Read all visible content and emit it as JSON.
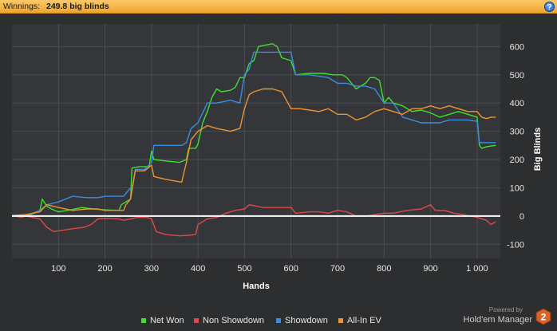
{
  "header": {
    "label": "Winnings:",
    "value": "249.8 big blinds",
    "help_symbol": "?"
  },
  "brand": {
    "powered_by": "Powered by",
    "name": "Hold'em Manager",
    "logo_text": "2"
  },
  "colors": {
    "background": "#2c2e30",
    "plot_background": "#34363a",
    "grid": "#4a4d52",
    "zero_line": "#ffffff",
    "net_won": "#3ee02c",
    "non_showdown": "#e04848",
    "showdown": "#3a8de0",
    "allin_ev": "#f0922e",
    "header": "#f7b548"
  },
  "chart_data": {
    "type": "line",
    "title": "",
    "xlabel": "Hands",
    "ylabel": "Big Blinds",
    "xlim": [
      0,
      1050
    ],
    "ylim": [
      -150,
      680
    ],
    "x_ticks": [
      100,
      200,
      300,
      400,
      500,
      600,
      700,
      800,
      900,
      1000
    ],
    "x_tick_labels": [
      "100",
      "200",
      "300",
      "400",
      "500",
      "600",
      "700",
      "800",
      "900",
      "1 000"
    ],
    "y_ticks": [
      -100,
      0,
      100,
      200,
      300,
      400,
      500,
      600
    ],
    "y_tick_labels": [
      "-100",
      "0",
      "100",
      "200",
      "300",
      "400",
      "500",
      "600"
    ],
    "grid": true,
    "legend_position": "bottom",
    "series": [
      {
        "name": "Net Won",
        "color": "#3ee02c",
        "points": [
          [
            0,
            2
          ],
          [
            20,
            -4
          ],
          [
            40,
            5
          ],
          [
            60,
            20
          ],
          [
            65,
            60
          ],
          [
            75,
            35
          ],
          [
            85,
            25
          ],
          [
            100,
            15
          ],
          [
            120,
            20
          ],
          [
            150,
            30
          ],
          [
            175,
            25
          ],
          [
            200,
            22
          ],
          [
            230,
            20
          ],
          [
            235,
            40
          ],
          [
            245,
            50
          ],
          [
            255,
            60
          ],
          [
            258,
            170
          ],
          [
            275,
            175
          ],
          [
            295,
            175
          ],
          [
            300,
            230
          ],
          [
            305,
            200
          ],
          [
            330,
            195
          ],
          [
            360,
            190
          ],
          [
            375,
            200
          ],
          [
            380,
            240
          ],
          [
            395,
            240
          ],
          [
            400,
            255
          ],
          [
            410,
            330
          ],
          [
            420,
            370
          ],
          [
            430,
            420
          ],
          [
            440,
            450
          ],
          [
            450,
            440
          ],
          [
            470,
            445
          ],
          [
            480,
            455
          ],
          [
            490,
            490
          ],
          [
            500,
            490
          ],
          [
            510,
            540
          ],
          [
            520,
            550
          ],
          [
            530,
            600
          ],
          [
            560,
            610
          ],
          [
            570,
            600
          ],
          [
            580,
            560
          ],
          [
            600,
            550
          ],
          [
            610,
            500
          ],
          [
            640,
            505
          ],
          [
            670,
            505
          ],
          [
            690,
            500
          ],
          [
            710,
            500
          ],
          [
            720,
            490
          ],
          [
            730,
            470
          ],
          [
            740,
            450
          ],
          [
            750,
            460
          ],
          [
            760,
            470
          ],
          [
            770,
            490
          ],
          [
            780,
            490
          ],
          [
            790,
            480
          ],
          [
            800,
            400
          ],
          [
            810,
            420
          ],
          [
            820,
            400
          ],
          [
            840,
            390
          ],
          [
            860,
            370
          ],
          [
            880,
            375
          ],
          [
            900,
            365
          ],
          [
            920,
            350
          ],
          [
            940,
            360
          ],
          [
            960,
            370
          ],
          [
            980,
            360
          ],
          [
            1000,
            350
          ],
          [
            1005,
            250
          ],
          [
            1010,
            240
          ],
          [
            1020,
            245
          ],
          [
            1030,
            248
          ],
          [
            1040,
            250
          ]
        ]
      },
      {
        "name": "Non Showdown",
        "color": "#e04848",
        "points": [
          [
            0,
            2
          ],
          [
            20,
            -4
          ],
          [
            30,
            0
          ],
          [
            60,
            -10
          ],
          [
            75,
            -40
          ],
          [
            90,
            -55
          ],
          [
            110,
            -50
          ],
          [
            130,
            -45
          ],
          [
            155,
            -40
          ],
          [
            170,
            -30
          ],
          [
            185,
            -10
          ],
          [
            200,
            -8
          ],
          [
            230,
            -10
          ],
          [
            240,
            -15
          ],
          [
            255,
            -10
          ],
          [
            270,
            -5
          ],
          [
            290,
            -5
          ],
          [
            300,
            -10
          ],
          [
            310,
            -55
          ],
          [
            330,
            -65
          ],
          [
            360,
            -70
          ],
          [
            380,
            -68
          ],
          [
            395,
            -65
          ],
          [
            400,
            -30
          ],
          [
            420,
            -10
          ],
          [
            440,
            -5
          ],
          [
            460,
            10
          ],
          [
            480,
            20
          ],
          [
            500,
            25
          ],
          [
            510,
            40
          ],
          [
            540,
            30
          ],
          [
            560,
            30
          ],
          [
            580,
            30
          ],
          [
            600,
            30
          ],
          [
            610,
            10
          ],
          [
            640,
            15
          ],
          [
            660,
            15
          ],
          [
            680,
            10
          ],
          [
            700,
            20
          ],
          [
            720,
            15
          ],
          [
            740,
            0
          ],
          [
            760,
            0
          ],
          [
            780,
            5
          ],
          [
            800,
            10
          ],
          [
            820,
            10
          ],
          [
            850,
            20
          ],
          [
            880,
            25
          ],
          [
            900,
            40
          ],
          [
            910,
            20
          ],
          [
            930,
            20
          ],
          [
            950,
            10
          ],
          [
            970,
            5
          ],
          [
            1000,
            -5
          ],
          [
            1010,
            -10
          ],
          [
            1020,
            -15
          ],
          [
            1030,
            -30
          ],
          [
            1040,
            -20
          ]
        ]
      },
      {
        "name": "Showdown",
        "color": "#3a8de0",
        "points": [
          [
            0,
            2
          ],
          [
            30,
            0
          ],
          [
            60,
            20
          ],
          [
            75,
            40
          ],
          [
            100,
            50
          ],
          [
            130,
            70
          ],
          [
            160,
            65
          ],
          [
            185,
            65
          ],
          [
            200,
            70
          ],
          [
            240,
            70
          ],
          [
            245,
            80
          ],
          [
            260,
            110
          ],
          [
            265,
            165
          ],
          [
            285,
            165
          ],
          [
            300,
            190
          ],
          [
            305,
            250
          ],
          [
            330,
            250
          ],
          [
            365,
            250
          ],
          [
            375,
            260
          ],
          [
            385,
            310
          ],
          [
            400,
            330
          ],
          [
            420,
            400
          ],
          [
            440,
            400
          ],
          [
            470,
            410
          ],
          [
            490,
            400
          ],
          [
            500,
            500
          ],
          [
            510,
            520
          ],
          [
            520,
            580
          ],
          [
            530,
            580
          ],
          [
            560,
            580
          ],
          [
            600,
            580
          ],
          [
            610,
            500
          ],
          [
            640,
            500
          ],
          [
            680,
            490
          ],
          [
            700,
            470
          ],
          [
            720,
            470
          ],
          [
            740,
            460
          ],
          [
            760,
            460
          ],
          [
            780,
            450
          ],
          [
            800,
            400
          ],
          [
            820,
            400
          ],
          [
            840,
            350
          ],
          [
            860,
            340
          ],
          [
            880,
            330
          ],
          [
            900,
            330
          ],
          [
            920,
            330
          ],
          [
            940,
            340
          ],
          [
            960,
            340
          ],
          [
            980,
            340
          ],
          [
            1000,
            335
          ],
          [
            1005,
            260
          ],
          [
            1040,
            260
          ]
        ]
      },
      {
        "name": "All-In EV",
        "color": "#f0922e",
        "points": [
          [
            0,
            2
          ],
          [
            30,
            5
          ],
          [
            60,
            15
          ],
          [
            75,
            40
          ],
          [
            100,
            30
          ],
          [
            130,
            20
          ],
          [
            160,
            25
          ],
          [
            185,
            25
          ],
          [
            200,
            20
          ],
          [
            240,
            20
          ],
          [
            245,
            40
          ],
          [
            255,
            60
          ],
          [
            265,
            160
          ],
          [
            285,
            160
          ],
          [
            300,
            180
          ],
          [
            305,
            140
          ],
          [
            330,
            130
          ],
          [
            365,
            120
          ],
          [
            375,
            190
          ],
          [
            385,
            270
          ],
          [
            400,
            300
          ],
          [
            420,
            320
          ],
          [
            440,
            310
          ],
          [
            470,
            300
          ],
          [
            490,
            310
          ],
          [
            500,
            380
          ],
          [
            510,
            430
          ],
          [
            520,
            440
          ],
          [
            540,
            450
          ],
          [
            560,
            450
          ],
          [
            580,
            440
          ],
          [
            600,
            380
          ],
          [
            620,
            380
          ],
          [
            660,
            370
          ],
          [
            680,
            380
          ],
          [
            700,
            360
          ],
          [
            720,
            360
          ],
          [
            740,
            340
          ],
          [
            760,
            350
          ],
          [
            780,
            370
          ],
          [
            800,
            380
          ],
          [
            820,
            370
          ],
          [
            840,
            360
          ],
          [
            860,
            380
          ],
          [
            880,
            380
          ],
          [
            900,
            390
          ],
          [
            920,
            380
          ],
          [
            940,
            390
          ],
          [
            960,
            380
          ],
          [
            980,
            370
          ],
          [
            1000,
            370
          ],
          [
            1010,
            350
          ],
          [
            1020,
            345
          ],
          [
            1030,
            350
          ],
          [
            1040,
            350
          ]
        ]
      }
    ]
  }
}
